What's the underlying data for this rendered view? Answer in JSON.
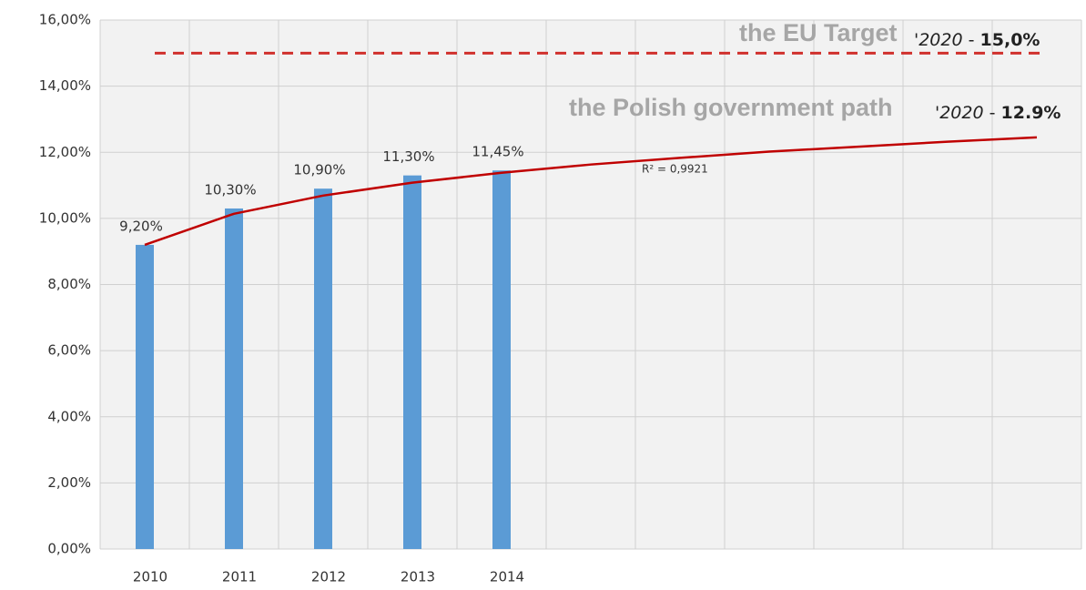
{
  "chart_data": {
    "type": "bar",
    "categories": [
      "2010",
      "2011",
      "2012",
      "2013",
      "2014",
      null,
      null,
      null,
      null,
      null,
      null
    ],
    "values": [
      9.2,
      10.3,
      10.9,
      11.3,
      11.45,
      null,
      null,
      null,
      null,
      null,
      null
    ],
    "value_labels": [
      "9,20%",
      "10,30%",
      "10,90%",
      "11,30%",
      "11,45%",
      null,
      null,
      null,
      null,
      null,
      null
    ],
    "color": "#5b9bd5",
    "ylim": [
      0,
      16
    ],
    "yticks": [
      {
        "value": 0,
        "label": "0,00%"
      },
      {
        "value": 2,
        "label": "2,00%"
      },
      {
        "value": 4,
        "label": "4,00%"
      },
      {
        "value": 6,
        "label": "6,00%"
      },
      {
        "value": 8,
        "label": "8,00%"
      },
      {
        "value": 10,
        "label": "10,00%"
      },
      {
        "value": 12,
        "label": "12,00%"
      },
      {
        "value": 14,
        "label": "14,00%"
      },
      {
        "value": 16,
        "label": "16,00%"
      }
    ],
    "grid": true,
    "trend": {
      "color": "#c00000",
      "values": [
        9.2,
        10.14,
        10.69,
        11.08,
        11.38,
        11.63,
        11.83,
        12.02,
        12.17,
        12.32,
        12.45
      ]
    },
    "target": {
      "value": 15,
      "color": "#d0312d"
    },
    "annotations": {
      "eu_target": "the EU Target",
      "eu_year": "'2020",
      "eu_dash": "-",
      "eu_value": "15,0%",
      "gov_path": "the Polish government path",
      "gov_year": "'2020",
      "gov_dash": "-",
      "gov_value": "12.9%",
      "r_squared": "R² = 0,9921"
    }
  }
}
